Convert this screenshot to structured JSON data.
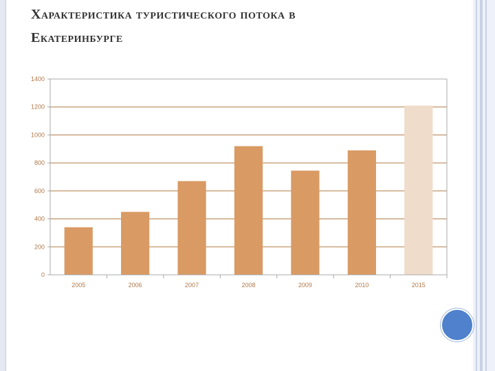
{
  "slide": {
    "title_line1": "Характеристика туристического потока в",
    "title_line2": "Екатеринбурге"
  },
  "colors": {
    "bar": "#d99a64",
    "bar_highlight": "#f0dccb",
    "axis": "#a8a8a8",
    "grid": "#b07a45",
    "tick_text": "#b0784a",
    "accent_circle": "#4f81cc"
  },
  "chart_data": {
    "type": "bar",
    "title": "",
    "xlabel": "",
    "ylabel": "",
    "categories": [
      "2005",
      "2006",
      "2007",
      "2008",
      "2009",
      "2010",
      "2015"
    ],
    "values": [
      340,
      450,
      670,
      920,
      745,
      890,
      1210
    ],
    "highlighted": [
      "2015"
    ],
    "ylim": [
      0,
      1400
    ],
    "yticks": [
      0,
      200,
      400,
      600,
      800,
      1000,
      1200,
      1400
    ],
    "grid": true,
    "legend": "none"
  }
}
